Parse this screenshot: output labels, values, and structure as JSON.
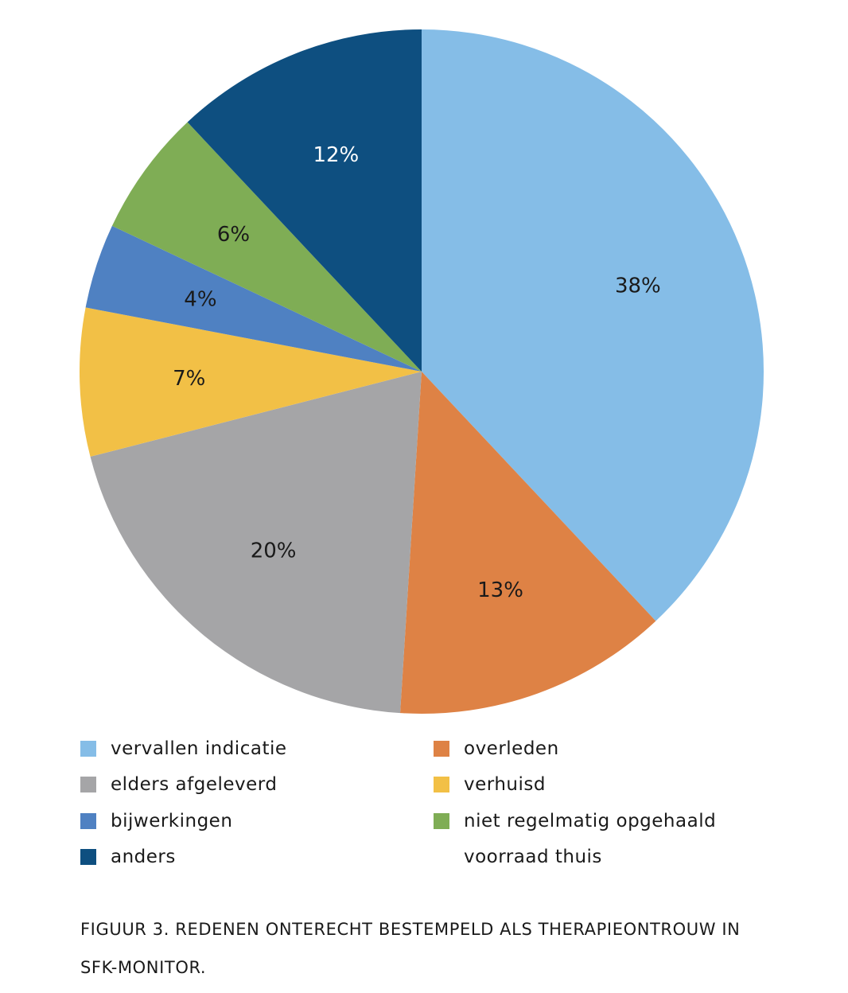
{
  "chart_data": {
    "type": "pie",
    "title": "",
    "slices": [
      {
        "name": "vervallen indicatie",
        "value": 38,
        "label": "38%",
        "color": "#85bde7",
        "label_color": "#1a1a1a"
      },
      {
        "name": "overleden",
        "value": 13,
        "label": "13%",
        "color": "#de8245",
        "label_color": "#1a1a1a"
      },
      {
        "name": "elders afgeleverd",
        "value": 20,
        "label": "20%",
        "color": "#a5a5a7",
        "label_color": "#1a1a1a"
      },
      {
        "name": "verhuisd",
        "value": 7,
        "label": "7%",
        "color": "#f2c046",
        "label_color": "#1a1a1a"
      },
      {
        "name": "bijwerkingen",
        "value": 4,
        "label": "4%",
        "color": "#4f81c2",
        "label_color": "#1a1a1a"
      },
      {
        "name": "niet regelmatig opgehaald",
        "value": 6,
        "label": "6%",
        "color": "#7fad55",
        "label_color": "#1a1a1a"
      },
      {
        "name": "anders",
        "value": 12,
        "label": "12%",
        "color": "#0e4f80",
        "label_color": "#ffffff"
      }
    ],
    "start_angle": "12 o'clock",
    "direction": "clockwise",
    "legend_position": "bottom"
  },
  "legend": {
    "items": [
      {
        "label": "vervallen indicatie",
        "color": "#85bde7"
      },
      {
        "label": "overleden",
        "color": "#de8245"
      },
      {
        "label": "elders afgeleverd",
        "color": "#a5a5a7"
      },
      {
        "label": "verhuisd",
        "color": "#f2c046"
      },
      {
        "label": "bijwerkingen",
        "color": "#4f81c2"
      },
      {
        "label": "niet regelmatig opgehaald",
        "color": "#7fad55"
      },
      {
        "label": "anders",
        "color": "#0e4f80"
      },
      {
        "label": "voorraad thuis",
        "color": ""
      }
    ]
  },
  "caption": {
    "line1": "FIGUUR 3. REDENEN ONTERECHT BESTEMPELD ALS THERAPIEONTROUW IN",
    "line2": "SFK-MONITOR."
  }
}
